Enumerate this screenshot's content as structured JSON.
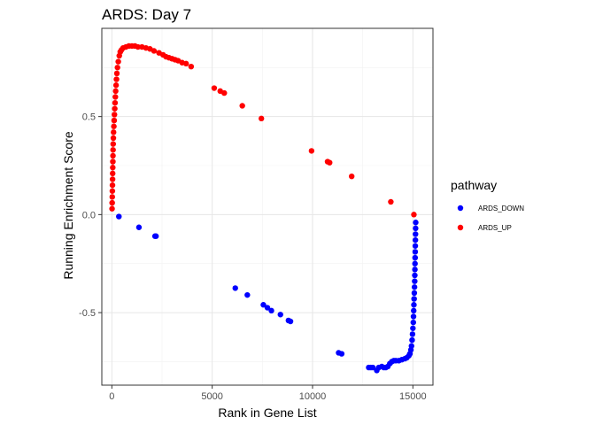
{
  "chart_data": {
    "type": "scatter",
    "title": "ARDS: Day 7",
    "xlabel": "Rank in Gene List",
    "ylabel": "Running Enrichment Score",
    "xlim": [
      -500,
      16000
    ],
    "ylim": [
      -0.87,
      0.95
    ],
    "x_ticks": [
      {
        "value": 0,
        "label": "0"
      },
      {
        "value": 5000,
        "label": "5000"
      },
      {
        "value": 10000,
        "label": "10000"
      },
      {
        "value": 15000,
        "label": "15000"
      }
    ],
    "y_ticks": [
      {
        "value": -0.5,
        "label": "-0.5"
      },
      {
        "value": 0.0,
        "label": "0.0"
      },
      {
        "value": 0.5,
        "label": "0.5"
      }
    ],
    "grid": true,
    "legend": {
      "title": "pathway",
      "position": "right"
    },
    "series": [
      {
        "name": "ARDS_DOWN",
        "color": "#0000ff",
        "points": [
          [
            350,
            -0.01
          ],
          [
            1350,
            -0.065
          ],
          [
            2150,
            -0.11
          ],
          [
            2200,
            -0.11
          ],
          [
            6150,
            -0.375
          ],
          [
            6750,
            -0.41
          ],
          [
            7550,
            -0.46
          ],
          [
            7750,
            -0.475
          ],
          [
            7950,
            -0.49
          ],
          [
            8400,
            -0.51
          ],
          [
            8800,
            -0.54
          ],
          [
            8900,
            -0.545
          ],
          [
            11300,
            -0.705
          ],
          [
            11450,
            -0.71
          ],
          [
            12800,
            -0.78
          ],
          [
            12900,
            -0.78
          ],
          [
            13000,
            -0.78
          ],
          [
            13200,
            -0.795
          ],
          [
            13300,
            -0.78
          ],
          [
            13450,
            -0.775
          ],
          [
            13550,
            -0.78
          ],
          [
            13650,
            -0.78
          ],
          [
            13750,
            -0.775
          ],
          [
            13850,
            -0.76
          ],
          [
            13950,
            -0.75
          ],
          [
            14050,
            -0.745
          ],
          [
            14150,
            -0.745
          ],
          [
            14300,
            -0.745
          ],
          [
            14450,
            -0.74
          ],
          [
            14600,
            -0.735
          ],
          [
            14700,
            -0.73
          ],
          [
            14800,
            -0.72
          ],
          [
            14850,
            -0.71
          ],
          [
            14900,
            -0.69
          ],
          [
            14930,
            -0.67
          ],
          [
            14960,
            -0.64
          ],
          [
            14980,
            -0.61
          ],
          [
            15000,
            -0.58
          ],
          [
            15020,
            -0.55
          ],
          [
            15030,
            -0.52
          ],
          [
            15040,
            -0.49
          ],
          [
            15050,
            -0.46
          ],
          [
            15060,
            -0.43
          ],
          [
            15070,
            -0.4
          ],
          [
            15080,
            -0.37
          ],
          [
            15090,
            -0.34
          ],
          [
            15095,
            -0.31
          ],
          [
            15100,
            -0.28
          ],
          [
            15105,
            -0.25
          ],
          [
            15110,
            -0.22
          ],
          [
            15115,
            -0.19
          ],
          [
            15120,
            -0.16
          ],
          [
            15125,
            -0.13
          ],
          [
            15130,
            -0.1
          ],
          [
            15135,
            -0.07
          ],
          [
            15140,
            -0.04
          ]
        ]
      },
      {
        "name": "ARDS_UP",
        "color": "#ff0000",
        "points": [
          [
            10,
            0.03
          ],
          [
            15,
            0.06
          ],
          [
            20,
            0.09
          ],
          [
            25,
            0.12
          ],
          [
            30,
            0.15
          ],
          [
            35,
            0.18
          ],
          [
            40,
            0.21
          ],
          [
            45,
            0.24
          ],
          [
            50,
            0.27
          ],
          [
            55,
            0.3
          ],
          [
            60,
            0.33
          ],
          [
            65,
            0.36
          ],
          [
            75,
            0.39
          ],
          [
            85,
            0.42
          ],
          [
            100,
            0.45
          ],
          [
            115,
            0.48
          ],
          [
            130,
            0.51
          ],
          [
            145,
            0.54
          ],
          [
            160,
            0.57
          ],
          [
            175,
            0.6
          ],
          [
            190,
            0.63
          ],
          [
            210,
            0.66
          ],
          [
            230,
            0.69
          ],
          [
            250,
            0.72
          ],
          [
            280,
            0.75
          ],
          [
            320,
            0.78
          ],
          [
            370,
            0.81
          ],
          [
            420,
            0.83
          ],
          [
            480,
            0.84
          ],
          [
            560,
            0.85
          ],
          [
            700,
            0.855
          ],
          [
            850,
            0.86
          ],
          [
            1000,
            0.86
          ],
          [
            1150,
            0.86
          ],
          [
            1300,
            0.855
          ],
          [
            1500,
            0.855
          ],
          [
            1700,
            0.85
          ],
          [
            1900,
            0.845
          ],
          [
            2100,
            0.835
          ],
          [
            2350,
            0.825
          ],
          [
            2550,
            0.815
          ],
          [
            2700,
            0.805
          ],
          [
            2850,
            0.8
          ],
          [
            3000,
            0.795
          ],
          [
            3150,
            0.79
          ],
          [
            3300,
            0.785
          ],
          [
            3500,
            0.775
          ],
          [
            3700,
            0.77
          ],
          [
            3950,
            0.755
          ],
          [
            5100,
            0.645
          ],
          [
            5400,
            0.63
          ],
          [
            5600,
            0.62
          ],
          [
            6500,
            0.555
          ],
          [
            7450,
            0.49
          ],
          [
            9950,
            0.325
          ],
          [
            10750,
            0.27
          ],
          [
            10850,
            0.265
          ],
          [
            11950,
            0.195
          ],
          [
            13900,
            0.065
          ],
          [
            15050,
            0.0
          ]
        ]
      }
    ]
  }
}
